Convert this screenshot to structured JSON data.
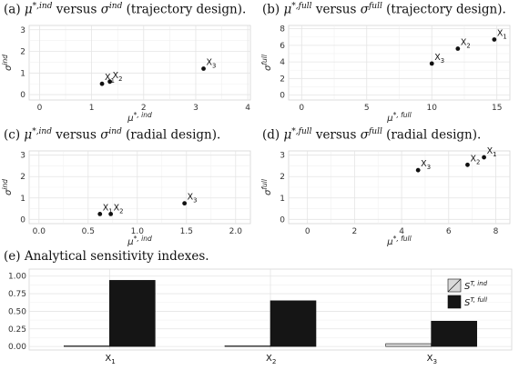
{
  "panels": [
    {
      "caption": {
        "label": "(a)",
        "mu_sup": "*,ind",
        "mid": "versus",
        "sigma_sup": "ind",
        "suffix": "(trajectory design)."
      },
      "chart_data": {
        "type": "scatter",
        "xlabel": "μ*, ind",
        "ylabel": "σind",
        "xlim": [
          -0.2,
          4.05
        ],
        "ylim": [
          -0.25,
          3.2
        ],
        "xticks": [
          0,
          1,
          2,
          3,
          4
        ],
        "yticks": [
          0,
          1,
          2,
          3
        ],
        "grid": true,
        "points": [
          {
            "label": "X1",
            "x": 1.2,
            "y": 0.5
          },
          {
            "label": "X2",
            "x": 1.35,
            "y": 0.6
          },
          {
            "label": "X3",
            "x": 3.15,
            "y": 1.2
          }
        ]
      }
    },
    {
      "caption": {
        "label": "(b)",
        "mu_sup": "*,full",
        "mid": "versus",
        "sigma_sup": "full",
        "suffix": "(trajectory design)."
      },
      "chart_data": {
        "type": "scatter",
        "xlabel": "μ*, full",
        "ylabel": "σfull",
        "xlim": [
          -1.0,
          16.0
        ],
        "ylim": [
          -0.6,
          8.4
        ],
        "xticks": [
          0,
          5,
          10,
          15
        ],
        "yticks": [
          0,
          2,
          4,
          6,
          8
        ],
        "grid": true,
        "points": [
          {
            "label": "X1",
            "x": 14.8,
            "y": 6.7
          },
          {
            "label": "X2",
            "x": 12.0,
            "y": 5.6
          },
          {
            "label": "X3",
            "x": 10.0,
            "y": 3.8
          }
        ]
      }
    },
    {
      "caption": {
        "label": "(c)",
        "mu_sup": "*,ind",
        "mid": "versus",
        "sigma_sup": "ind",
        "suffix": "(radial design)."
      },
      "chart_data": {
        "type": "scatter",
        "xlabel": "μ*, ind",
        "ylabel": "σind",
        "xlim": [
          -0.1,
          2.15
        ],
        "ylim": [
          -0.2,
          3.2
        ],
        "xticks": [
          0.0,
          0.5,
          1.0,
          1.5,
          2.0
        ],
        "yticks": [
          0,
          1,
          2,
          3
        ],
        "grid": true,
        "points": [
          {
            "label": "X1",
            "x": 0.62,
            "y": 0.25
          },
          {
            "label": "X2",
            "x": 0.73,
            "y": 0.25
          },
          {
            "label": "X3",
            "x": 1.48,
            "y": 0.75
          }
        ]
      }
    },
    {
      "caption": {
        "label": "(d)",
        "mu_sup": "*,full",
        "mid": "versus",
        "sigma_sup": "full",
        "suffix": "(radial design)."
      },
      "chart_data": {
        "type": "scatter",
        "xlabel": "μ*, full",
        "ylabel": "σfull",
        "xlim": [
          -0.8,
          8.6
        ],
        "ylim": [
          -0.2,
          3.2
        ],
        "xticks": [
          0,
          2,
          4,
          6,
          8
        ],
        "yticks": [
          0,
          1,
          2,
          3
        ],
        "grid": true,
        "points": [
          {
            "label": "X1",
            "x": 7.5,
            "y": 2.9
          },
          {
            "label": "X2",
            "x": 6.8,
            "y": 2.55
          },
          {
            "label": "X3",
            "x": 4.7,
            "y": 2.3
          }
        ]
      }
    }
  ],
  "panel_e": {
    "caption": "(e) Analytical sensitivity indexes.",
    "chart_data": {
      "type": "bar",
      "categories": [
        "X1",
        "X2",
        "X3"
      ],
      "series": [
        {
          "name": "S T, ind",
          "values": [
            0.01,
            0.01,
            0.04
          ],
          "color": "#d9d9d9"
        },
        {
          "name": "S T, full",
          "values": [
            0.94,
            0.65,
            0.36
          ],
          "color": "#151515"
        }
      ],
      "ylim": [
        -0.05,
        1.1
      ],
      "yticks": [
        "0.00",
        "0.25",
        "0.50",
        "0.75",
        "1.00"
      ],
      "grid": true,
      "legend": "top-right"
    }
  }
}
